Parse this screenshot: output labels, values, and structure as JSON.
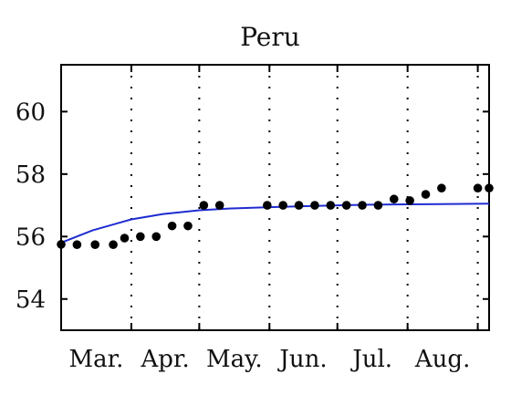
{
  "chart_data": {
    "type": "scatter",
    "title": "Peru",
    "xlabel": "",
    "ylabel": "",
    "x_tick_labels": [
      "Mar.",
      "Apr.",
      "May.",
      "Jun.",
      "Jul.",
      "Aug."
    ],
    "y_ticks": [
      54,
      56,
      58,
      60
    ],
    "ylim": [
      53,
      61.5
    ],
    "grid": "vertical dotted lines",
    "series": [
      {
        "type": "scatter",
        "marker_color": "#000000",
        "points": [
          {
            "x": "Mar. 1",
            "y": 55.75
          },
          {
            "x": "Mar. 8",
            "y": 55.74
          },
          {
            "x": "Mar. 16",
            "y": 55.74
          },
          {
            "x": "Mar. 24",
            "y": 55.74
          },
          {
            "x": "Mar. 29",
            "y": 55.95
          },
          {
            "x": "Apr. 5",
            "y": 56.0
          },
          {
            "x": "Apr. 12",
            "y": 56.0
          },
          {
            "x": "Apr. 19",
            "y": 56.34
          },
          {
            "x": "Apr. 26",
            "y": 56.34
          },
          {
            "x": "May. 3",
            "y": 57.0
          },
          {
            "x": "May. 10",
            "y": 57.0
          },
          {
            "x": "May. 31",
            "y": 57.0
          },
          {
            "x": "Jun. 7",
            "y": 57.0
          },
          {
            "x": "Jun. 14",
            "y": 57.0
          },
          {
            "x": "Jun. 21",
            "y": 57.0
          },
          {
            "x": "Jun. 28",
            "y": 57.0
          },
          {
            "x": "Jul. 5",
            "y": 57.0
          },
          {
            "x": "Jul. 12",
            "y": 57.0
          },
          {
            "x": "Jul. 19",
            "y": 57.0
          },
          {
            "x": "Jul. 26",
            "y": 57.2
          },
          {
            "x": "Aug. 2",
            "y": 57.15
          },
          {
            "x": "Aug. 9",
            "y": 57.35
          },
          {
            "x": "Aug. 16",
            "y": 57.55
          },
          {
            "x": "Sep. 1",
            "y": 57.55
          },
          {
            "x": "Sep. 6",
            "y": 57.55
          }
        ]
      },
      {
        "type": "line",
        "color": "#1f2bd1",
        "points": [
          {
            "x": "Mar. 1",
            "y": 55.8
          },
          {
            "x": "Mar. 15",
            "y": 56.2
          },
          {
            "x": "Apr. 1",
            "y": 56.55
          },
          {
            "x": "Apr. 15",
            "y": 56.72
          },
          {
            "x": "May. 1",
            "y": 56.84
          },
          {
            "x": "May. 15",
            "y": 56.9
          },
          {
            "x": "Jun. 1",
            "y": 56.94
          },
          {
            "x": "Jun. 15",
            "y": 56.97
          },
          {
            "x": "Jul. 1",
            "y": 57.0
          },
          {
            "x": "Jul. 15",
            "y": 57.02
          },
          {
            "x": "Aug. 1",
            "y": 57.03
          },
          {
            "x": "Aug. 15",
            "y": 57.04
          },
          {
            "x": "Sep. 6",
            "y": 57.05
          }
        ]
      }
    ]
  }
}
